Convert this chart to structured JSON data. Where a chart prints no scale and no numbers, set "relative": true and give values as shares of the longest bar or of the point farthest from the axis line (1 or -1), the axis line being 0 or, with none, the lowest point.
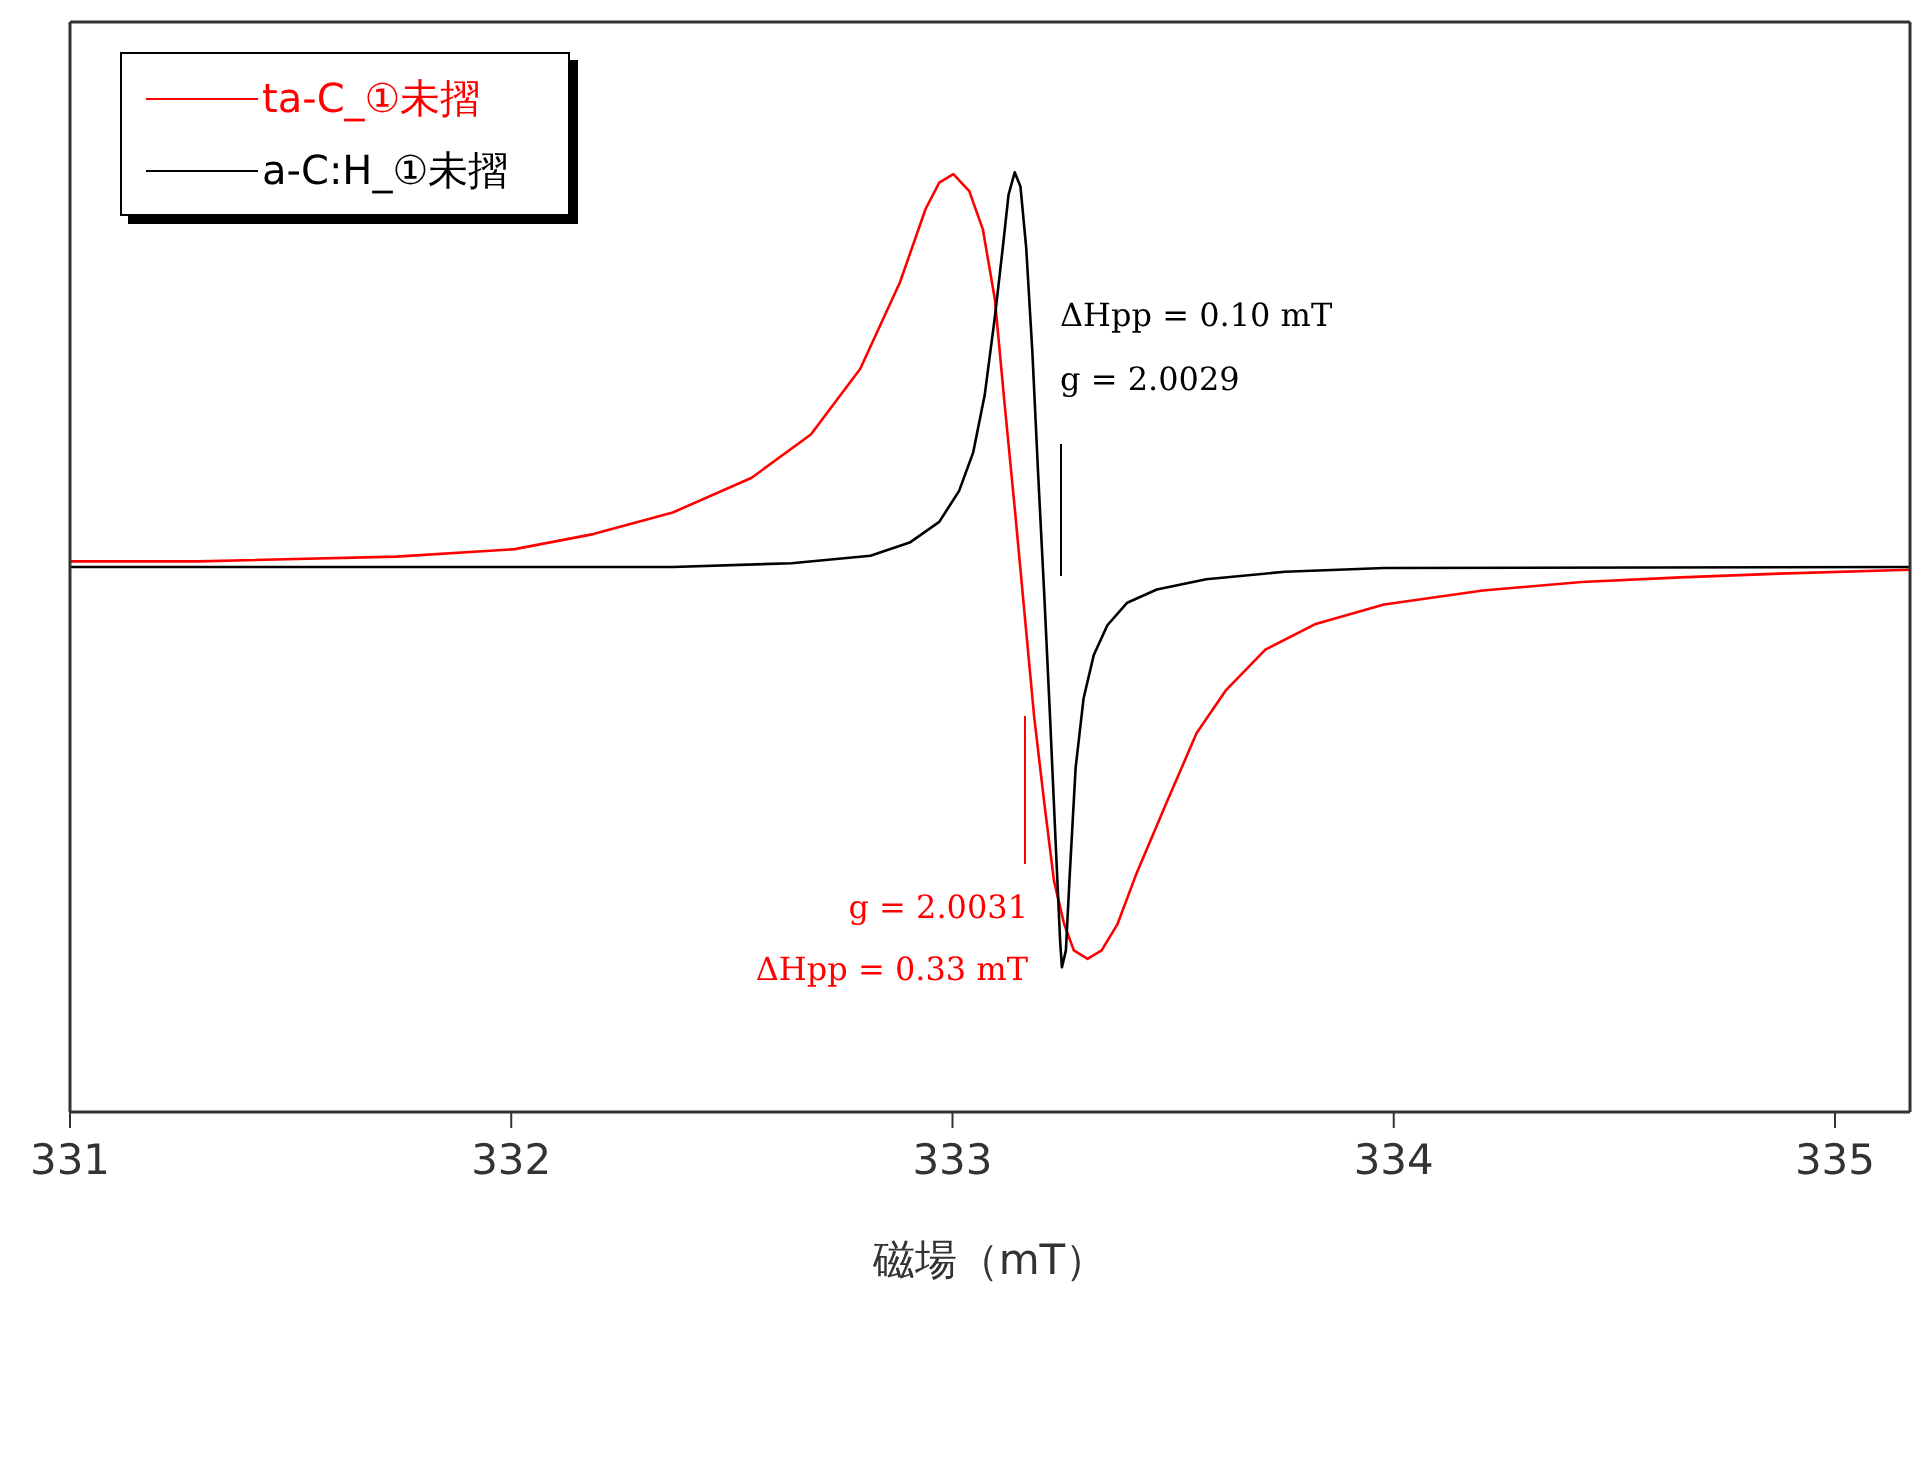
{
  "chart_data": {
    "type": "line",
    "relative": true,
    "xlabel": "磁場（mT）",
    "xlim": [
      331,
      335.17
    ],
    "xticks": [
      331,
      332,
      333,
      334,
      335
    ],
    "legend": "top left",
    "marker": "none",
    "line_style": "solid",
    "series": [
      {
        "name": "ta-C_①未摺",
        "color": "#ff0000",
        "x": [
          331.0,
          331.291,
          331.739,
          332.008,
          332.186,
          332.366,
          332.545,
          332.679,
          332.791,
          332.881,
          332.939,
          332.97,
          333.002,
          333.038,
          333.069,
          333.096,
          333.118,
          333.141,
          333.163,
          333.185,
          333.208,
          333.23,
          333.253,
          333.275,
          333.306,
          333.338,
          333.374,
          333.418,
          333.485,
          333.553,
          333.62,
          333.709,
          333.821,
          333.978,
          334.202,
          334.426,
          334.65,
          334.874,
          335.17
        ],
        "values": [
          0.586,
          0.586,
          0.591,
          0.599,
          0.615,
          0.638,
          0.675,
          0.721,
          0.791,
          0.883,
          0.961,
          0.989,
          0.998,
          0.98,
          0.939,
          0.865,
          0.754,
          0.643,
          0.532,
          0.421,
          0.329,
          0.246,
          0.2,
          0.172,
          0.163,
          0.172,
          0.2,
          0.255,
          0.329,
          0.403,
          0.449,
          0.492,
          0.519,
          0.54,
          0.555,
          0.564,
          0.569,
          0.573,
          0.577
        ]
      },
      {
        "name": "a-C:H_①未摺",
        "color": "#000000",
        "x": [
          331.0,
          332.366,
          332.635,
          332.814,
          332.903,
          332.97,
          333.015,
          333.047,
          333.073,
          333.096,
          333.114,
          333.127,
          333.141,
          333.154,
          333.167,
          333.181,
          333.194,
          333.208,
          333.221,
          333.235,
          333.244,
          333.248,
          333.257,
          333.266,
          333.279,
          333.297,
          333.32,
          333.351,
          333.396,
          333.463,
          333.575,
          333.754,
          333.978,
          335.17
        ],
        "values": [
          0.58,
          0.58,
          0.584,
          0.592,
          0.606,
          0.628,
          0.661,
          0.702,
          0.763,
          0.846,
          0.92,
          0.976,
          1.0,
          0.985,
          0.92,
          0.809,
          0.68,
          0.55,
          0.421,
          0.274,
          0.181,
          0.154,
          0.172,
          0.255,
          0.366,
          0.44,
          0.486,
          0.518,
          0.542,
          0.556,
          0.567,
          0.575,
          0.579,
          0.58
        ]
      }
    ],
    "annotations": [
      "ΔHpp = 0.10 mT",
      "g = 2.0029",
      "g = 2.0031",
      "ΔHpp = 0.33 mT"
    ]
  }
}
